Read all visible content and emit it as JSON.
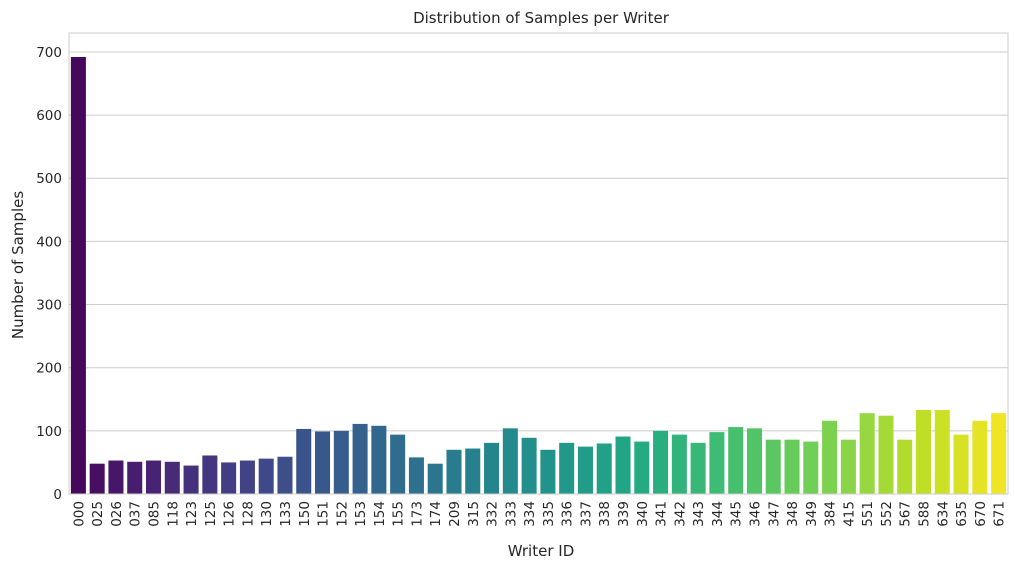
{
  "chart_data": {
    "type": "bar",
    "title": "Distribution of Samples per Writer",
    "xlabel": "Writer ID",
    "ylabel": "Number of Samples",
    "ylim": [
      0,
      730
    ],
    "yticks": [
      0,
      100,
      200,
      300,
      400,
      500,
      600,
      700
    ],
    "grid": "horizontal",
    "palette": "viridis",
    "colors": {
      "first": "#440154",
      "mid": "#21918c",
      "last": "#fde725"
    },
    "categories": [
      "000",
      "025",
      "026",
      "037",
      "085",
      "118",
      "123",
      "125",
      "126",
      "128",
      "130",
      "133",
      "150",
      "151",
      "152",
      "153",
      "154",
      "155",
      "173",
      "174",
      "209",
      "315",
      "332",
      "333",
      "334",
      "335",
      "336",
      "337",
      "338",
      "339",
      "340",
      "341",
      "342",
      "343",
      "344",
      "345",
      "346",
      "347",
      "348",
      "349",
      "384",
      "415",
      "551",
      "552",
      "567",
      "588",
      "634",
      "635",
      "670",
      "671"
    ],
    "values": [
      692,
      48,
      53,
      51,
      53,
      51,
      45,
      61,
      50,
      53,
      56,
      59,
      103,
      99,
      100,
      111,
      108,
      94,
      58,
      48,
      70,
      72,
      81,
      104,
      89,
      70,
      81,
      75,
      80,
      91,
      83,
      100,
      94,
      81,
      98,
      106,
      104,
      86,
      86,
      83,
      116,
      86,
      128,
      124,
      86,
      133,
      133,
      94,
      116,
      128
    ]
  }
}
